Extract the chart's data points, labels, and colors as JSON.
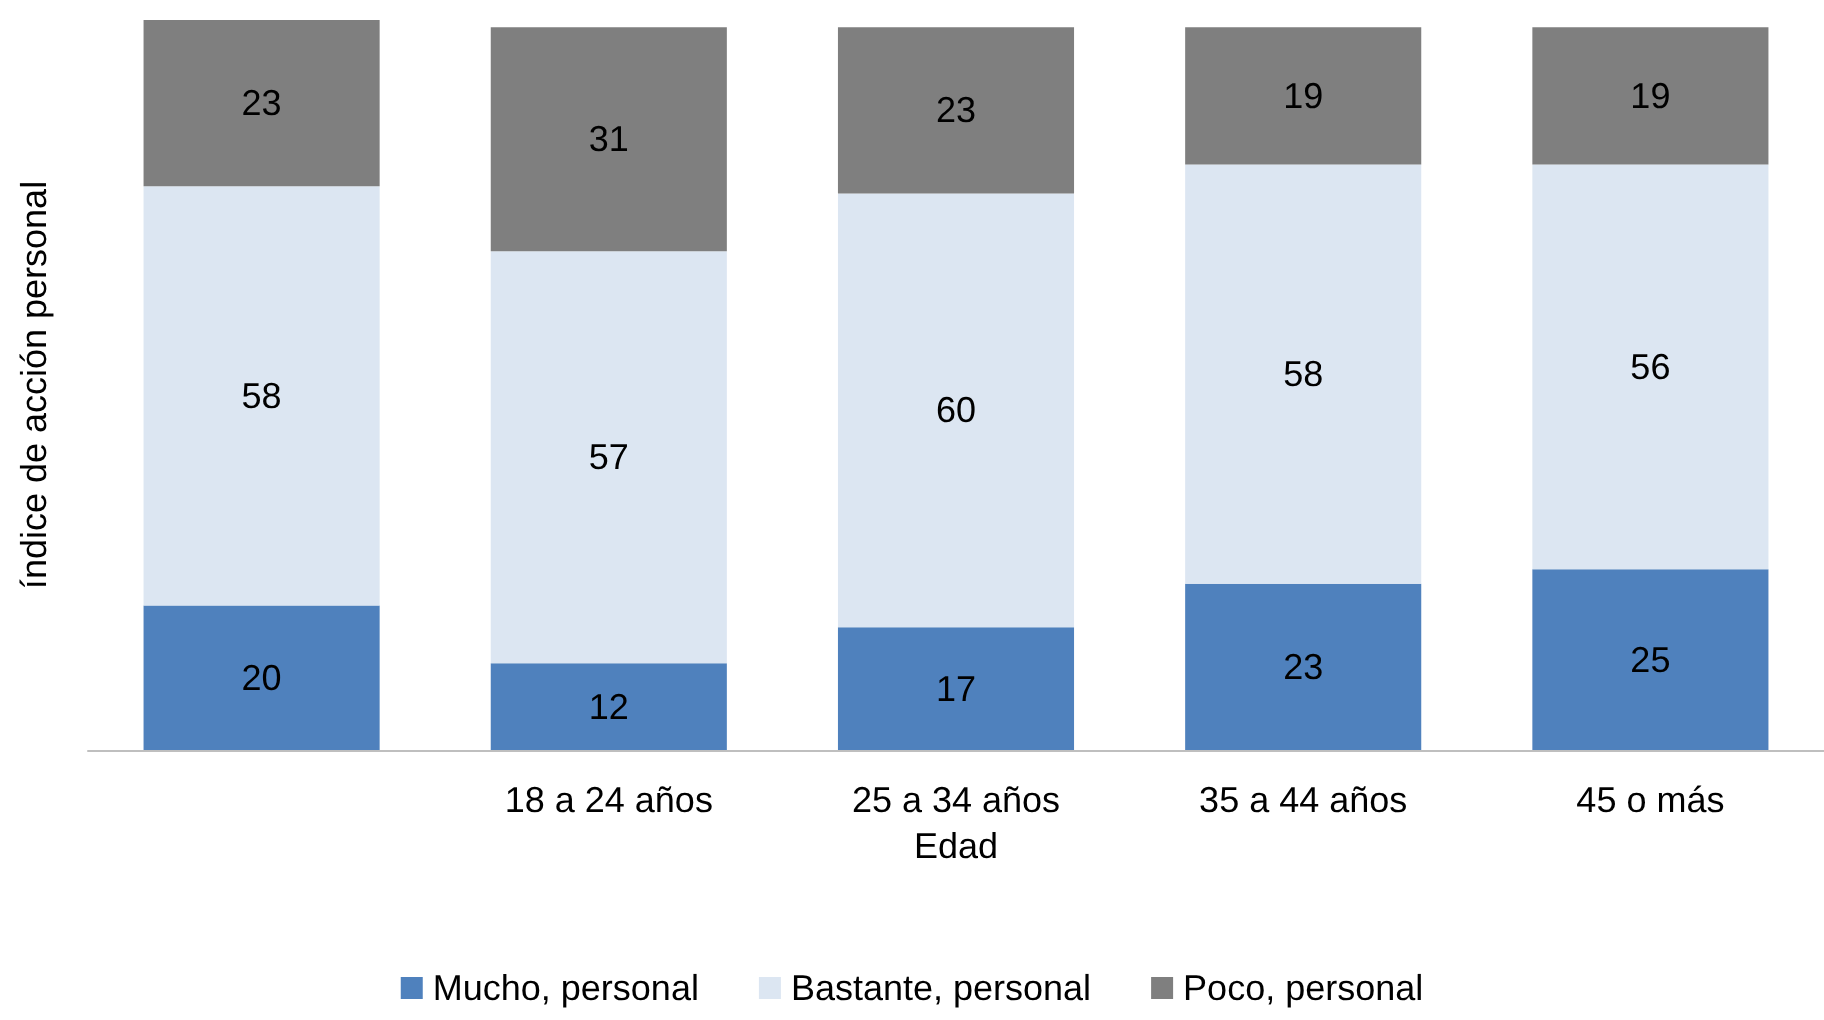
{
  "chart_data": {
    "type": "bar",
    "stacked": true,
    "data_labels": true,
    "xlabel": "Edad",
    "ylabel": "índice de acción personal",
    "legend": "bottom",
    "grid": false,
    "categories": [
      null,
      "18 a 24 años",
      "25 a 34 años",
      "35 a 44 años",
      "45 o más"
    ],
    "series": [
      {
        "name": "Mucho, personal",
        "color": "#4f81bd",
        "values": [
          20,
          12,
          17,
          23,
          25
        ]
      },
      {
        "name": "Bastante, personal",
        "color": "#dce6f2",
        "values": [
          58,
          57,
          60,
          58,
          56
        ]
      },
      {
        "name": "Poco, personal",
        "color": "#7f7f7f",
        "values": [
          23,
          31,
          23,
          19,
          19
        ]
      }
    ]
  }
}
